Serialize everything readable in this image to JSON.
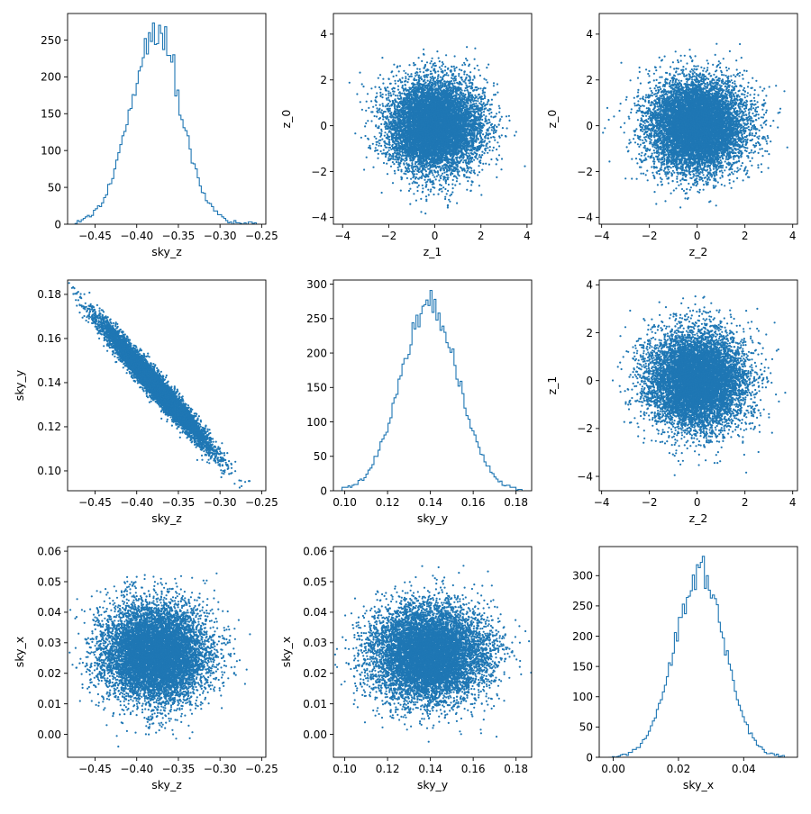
{
  "figure": {
    "series_color": "#1f77b4"
  },
  "chart_data": [
    {
      "id": "p00",
      "type": "histogram",
      "xlabel": "sky_z",
      "ylabel": "",
      "xlim": [
        -0.483,
        -0.245
      ],
      "ylim": [
        0,
        286
      ],
      "xticks": [
        -0.45,
        -0.4,
        -0.35,
        -0.3,
        -0.25
      ],
      "xtick_labels": [
        "−0.45",
        "−0.40",
        "−0.35",
        "−0.30",
        "−0.25"
      ],
      "yticks": [
        0,
        50,
        100,
        150,
        200,
        250
      ],
      "ytick_labels": [
        "0",
        "50",
        "100",
        "150",
        "200",
        "250"
      ],
      "x_range": [
        -0.474,
        -0.254
      ],
      "bins": 90,
      "center": -0.378,
      "sd": 0.031,
      "peak": 252,
      "peak_points": [
        [
          -0.38,
          273
        ],
        [
          -0.385,
          260
        ],
        [
          -0.372,
          270
        ],
        [
          -0.366,
          268
        ],
        [
          -0.356,
          230
        ]
      ]
    },
    {
      "id": "p01",
      "type": "scatter",
      "xlabel": "z_1",
      "ylabel": "z_0",
      "xlim": [
        -4.4,
        4.2
      ],
      "ylim": [
        -4.3,
        4.9
      ],
      "xticks": [
        -4,
        -2,
        0,
        2,
        4
      ],
      "xtick_labels": [
        "−4",
        "−2",
        "0",
        "2",
        "4"
      ],
      "yticks": [
        -4,
        -2,
        0,
        2,
        4
      ],
      "ytick_labels": [
        "−4",
        "−2",
        "0",
        "2",
        "4"
      ],
      "distribution": {
        "kind": "normal",
        "mean": [
          0,
          0
        ],
        "sd": [
          1,
          1
        ],
        "corr": 0,
        "n": 9000
      }
    },
    {
      "id": "p02",
      "type": "scatter",
      "xlabel": "z_2",
      "ylabel": "z_0",
      "xlim": [
        -4.1,
        4.2
      ],
      "ylim": [
        -4.3,
        4.9
      ],
      "xticks": [
        -4,
        -2,
        0,
        2,
        4
      ],
      "xtick_labels": [
        "−4",
        "−2",
        "0",
        "2",
        "4"
      ],
      "yticks": [
        -4,
        -2,
        0,
        2,
        4
      ],
      "ytick_labels": [
        "−4",
        "−2",
        "0",
        "2",
        "4"
      ],
      "distribution": {
        "kind": "normal",
        "mean": [
          0,
          0
        ],
        "sd": [
          1,
          1
        ],
        "corr": 0,
        "n": 9000
      }
    },
    {
      "id": "p10",
      "type": "scatter",
      "xlabel": "sky_z",
      "ylabel": "sky_y",
      "xlim": [
        -0.483,
        -0.245
      ],
      "ylim": [
        0.091,
        0.1865
      ],
      "xticks": [
        -0.45,
        -0.4,
        -0.35,
        -0.3,
        -0.25
      ],
      "xtick_labels": [
        "−0.45",
        "−0.40",
        "−0.35",
        "−0.30",
        "−0.25"
      ],
      "yticks": [
        0.1,
        0.12,
        0.14,
        0.16,
        0.18
      ],
      "ytick_labels": [
        "0.10",
        "0.12",
        "0.14",
        "0.16",
        "0.18"
      ],
      "distribution": {
        "kind": "normal",
        "mean": [
          -0.378,
          0.139
        ],
        "sd": [
          0.031,
          0.0135
        ],
        "corr": -0.975,
        "n": 9000
      }
    },
    {
      "id": "p11",
      "type": "histogram",
      "xlabel": "sky_y",
      "ylabel": "",
      "xlim": [
        0.0947,
        0.1873
      ],
      "ylim": [
        0,
        306
      ],
      "xticks": [
        0.1,
        0.12,
        0.14,
        0.16,
        0.18
      ],
      "xtick_labels": [
        "0.10",
        "0.12",
        "0.14",
        "0.16",
        "0.18"
      ],
      "yticks": [
        0,
        50,
        100,
        150,
        200,
        250,
        300
      ],
      "ytick_labels": [
        "0",
        "50",
        "100",
        "150",
        "200",
        "250",
        "300"
      ],
      "x_range": [
        0.0987,
        0.1828
      ],
      "bins": 90,
      "center": 0.1395,
      "sd": 0.0135,
      "peak": 268,
      "peak_points": [
        [
          0.1402,
          291
        ],
        [
          0.1418,
          278
        ],
        [
          0.1375,
          270
        ],
        [
          0.144,
          258
        ]
      ]
    },
    {
      "id": "p12",
      "type": "scatter",
      "xlabel": "z_2",
      "ylabel": "z_1",
      "xlim": [
        -4.1,
        4.2
      ],
      "ylim": [
        -4.6,
        4.2
      ],
      "xticks": [
        -4,
        -2,
        0,
        2,
        4
      ],
      "xtick_labels": [
        "−4",
        "−2",
        "0",
        "2",
        "4"
      ],
      "yticks": [
        -4,
        -2,
        0,
        2,
        4
      ],
      "ytick_labels": [
        "−4",
        "−2",
        "0",
        "2",
        "4"
      ],
      "distribution": {
        "kind": "normal",
        "mean": [
          0,
          0
        ],
        "sd": [
          1,
          1
        ],
        "corr": 0,
        "n": 9000
      }
    },
    {
      "id": "p20",
      "type": "scatter",
      "xlabel": "sky_z",
      "ylabel": "sky_x",
      "xlim": [
        -0.483,
        -0.245
      ],
      "ylim": [
        -0.0075,
        0.0615
      ],
      "xticks": [
        -0.45,
        -0.4,
        -0.35,
        -0.3,
        -0.25
      ],
      "xtick_labels": [
        "−0.45",
        "−0.40",
        "−0.35",
        "−0.30",
        "−0.25"
      ],
      "yticks": [
        0.0,
        0.01,
        0.02,
        0.03,
        0.04,
        0.05,
        0.06
      ],
      "ytick_labels": [
        "0.00",
        "0.01",
        "0.02",
        "0.03",
        "0.04",
        "0.05",
        "0.06"
      ],
      "distribution": {
        "kind": "normal",
        "mean": [
          -0.378,
          0.0265
        ],
        "sd": [
          0.031,
          0.0078
        ],
        "corr": 0,
        "n": 9000
      }
    },
    {
      "id": "p21",
      "type": "scatter",
      "xlabel": "sky_y",
      "ylabel": "sky_x",
      "xlim": [
        0.0947,
        0.1873
      ],
      "ylim": [
        -0.0075,
        0.0615
      ],
      "xticks": [
        0.1,
        0.12,
        0.14,
        0.16,
        0.18
      ],
      "xtick_labels": [
        "0.10",
        "0.12",
        "0.14",
        "0.16",
        "0.18"
      ],
      "yticks": [
        0.0,
        0.01,
        0.02,
        0.03,
        0.04,
        0.05,
        0.06
      ],
      "ytick_labels": [
        "0.00",
        "0.01",
        "0.02",
        "0.03",
        "0.04",
        "0.05",
        "0.06"
      ],
      "distribution": {
        "kind": "normal",
        "mean": [
          0.1395,
          0.0265
        ],
        "sd": [
          0.0135,
          0.0078
        ],
        "corr": 0,
        "n": 9000
      }
    },
    {
      "id": "p22",
      "type": "histogram",
      "xlabel": "sky_x",
      "ylabel": "",
      "xlim": [
        -0.0043,
        0.0565
      ],
      "ylim": [
        0,
        348
      ],
      "xticks": [
        0.0,
        0.02,
        0.04
      ],
      "xtick_labels": [
        "0.00",
        "0.02",
        "0.04"
      ],
      "yticks": [
        0,
        50,
        100,
        150,
        200,
        250,
        300
      ],
      "ytick_labels": [
        "0",
        "50",
        "100",
        "150",
        "200",
        "250",
        "300"
      ],
      "x_range": [
        -0.0015,
        0.0537
      ],
      "bins": 90,
      "center": 0.0265,
      "sd": 0.0078,
      "peak": 300,
      "peak_points": [
        [
          0.0277,
          332
        ],
        [
          0.0269,
          322
        ],
        [
          0.0258,
          318
        ],
        [
          0.0288,
          300
        ]
      ]
    }
  ]
}
